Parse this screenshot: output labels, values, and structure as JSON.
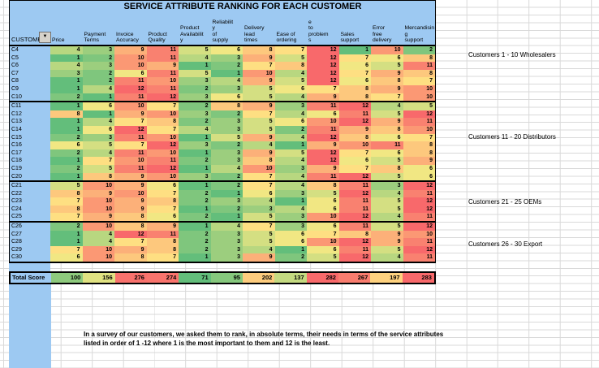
{
  "title": "SERVICE ATTRIBUTE RANKING FOR EACH CUSTOMER",
  "customer_header": "CUSTOME",
  "icons": {
    "filter_dropdown": "▼"
  },
  "columns": [
    "Price",
    "Payment\nTerms",
    "Invoice\nAccuracy",
    "Product\nQuality",
    "Product\nAvailabilit\ny",
    "Reliabilit\ny\nof\nsupply",
    "Delivery\nlead\ntimes",
    "Ease of\nordering",
    "e\nto\nproblem\ns",
    "Sales\nsupport",
    "Error\nfree\ndelivery",
    "Mercandisin\ng\nsupport"
  ],
  "groups": [
    {
      "rows": [
        {
          "id": "C4",
          "values": [
            4,
            3,
            9,
            11,
            5,
            6,
            8,
            7,
            12,
            1,
            10,
            2
          ]
        },
        {
          "id": "C5",
          "values": [
            1,
            2,
            10,
            11,
            4,
            3,
            9,
            5,
            12,
            7,
            6,
            8
          ]
        },
        {
          "id": "C6",
          "values": [
            4,
            3,
            10,
            9,
            1,
            2,
            7,
            8,
            12,
            6,
            5,
            11
          ]
        },
        {
          "id": "C7",
          "values": [
            3,
            2,
            6,
            11,
            5,
            1,
            10,
            4,
            12,
            7,
            9,
            8
          ]
        },
        {
          "id": "C8",
          "values": [
            1,
            2,
            11,
            10,
            3,
            4,
            9,
            5,
            12,
            6,
            8,
            7
          ]
        },
        {
          "id": "C9",
          "values": [
            1,
            4,
            12,
            11,
            2,
            3,
            5,
            6,
            7,
            8,
            9,
            10
          ]
        },
        {
          "id": "C10",
          "values": [
            2,
            1,
            11,
            12,
            3,
            6,
            5,
            4,
            9,
            8,
            7,
            10
          ]
        }
      ]
    },
    {
      "rows": [
        {
          "id": "C11",
          "values": [
            1,
            6,
            10,
            7,
            2,
            8,
            9,
            3,
            11,
            12,
            4,
            5
          ]
        },
        {
          "id": "C12",
          "values": [
            8,
            1,
            9,
            10,
            3,
            2,
            7,
            4,
            6,
            11,
            5,
            12
          ]
        },
        {
          "id": "C13",
          "values": [
            1,
            4,
            7,
            8,
            2,
            3,
            5,
            6,
            10,
            12,
            9,
            11
          ]
        },
        {
          "id": "C14",
          "values": [
            1,
            6,
            12,
            7,
            4,
            3,
            5,
            2,
            11,
            9,
            8,
            10
          ]
        },
        {
          "id": "C15",
          "values": [
            2,
            3,
            11,
            10,
            1,
            5,
            9,
            4,
            12,
            8,
            6,
            7
          ]
        },
        {
          "id": "C16",
          "values": [
            6,
            5,
            7,
            12,
            3,
            2,
            4,
            1,
            9,
            10,
            11,
            8
          ]
        },
        {
          "id": "C17",
          "values": [
            2,
            4,
            11,
            10,
            1,
            3,
            9,
            5,
            12,
            7,
            6,
            8
          ]
        },
        {
          "id": "C18",
          "values": [
            1,
            7,
            10,
            11,
            2,
            3,
            8,
            4,
            12,
            6,
            5,
            9
          ]
        },
        {
          "id": "C19",
          "values": [
            2,
            5,
            11,
            12,
            1,
            4,
            10,
            3,
            9,
            7,
            8,
            6
          ]
        },
        {
          "id": "C20",
          "values": [
            1,
            8,
            9,
            10,
            3,
            2,
            7,
            4,
            11,
            12,
            5,
            6
          ]
        }
      ]
    },
    {
      "rows": [
        {
          "id": "C21",
          "values": [
            5,
            10,
            9,
            6,
            1,
            2,
            7,
            4,
            8,
            11,
            3,
            12
          ]
        },
        {
          "id": "C22",
          "values": [
            8,
            9,
            10,
            7,
            2,
            1,
            6,
            3,
            5,
            12,
            4,
            11
          ]
        },
        {
          "id": "C23",
          "values": [
            7,
            10,
            9,
            8,
            2,
            3,
            4,
            1,
            6,
            11,
            5,
            12
          ]
        },
        {
          "id": "C24",
          "values": [
            8,
            10,
            9,
            7,
            1,
            2,
            3,
            4,
            6,
            11,
            5,
            12
          ]
        },
        {
          "id": "C25",
          "values": [
            7,
            9,
            8,
            6,
            2,
            1,
            5,
            3,
            10,
            12,
            4,
            11
          ]
        }
      ]
    },
    {
      "rows": [
        {
          "id": "C26",
          "values": [
            2,
            10,
            8,
            9,
            1,
            4,
            7,
            3,
            6,
            11,
            5,
            12
          ]
        },
        {
          "id": "C27",
          "values": [
            1,
            4,
            12,
            11,
            2,
            3,
            5,
            6,
            7,
            8,
            9,
            10
          ]
        },
        {
          "id": "C28",
          "values": [
            1,
            4,
            7,
            8,
            2,
            3,
            5,
            6,
            10,
            12,
            9,
            11
          ]
        },
        {
          "id": "C29",
          "values": [
            7,
            10,
            9,
            8,
            2,
            3,
            4,
            1,
            6,
            11,
            5,
            12
          ]
        },
        {
          "id": "C30",
          "values": [
            6,
            10,
            8,
            7,
            1,
            3,
            9,
            2,
            5,
            12,
            4,
            11
          ]
        }
      ]
    }
  ],
  "totals": {
    "label": "Total Score",
    "values": [
      100,
      156,
      276,
      274,
      71,
      95,
      202,
      137,
      282,
      267,
      197,
      283
    ]
  },
  "annotations": [
    "Customers 1 - 10 Wholesalers",
    "Customers 11 - 20 Distributors",
    "Customers 21 - 25 OEMs",
    "Customers 26 - 30 Export"
  ],
  "footnote": "In a survey of our customers, we asked them to rank, in absolute terms, their needs in terms of the service attributes listed in order of 1 -12 where 1 is the most important to them and 12 is the least.",
  "rank_scale": {
    "min": 1,
    "mid": 6.5,
    "max": 12
  },
  "colors": {
    "header_blue": "#9DC9F2",
    "scale_min": "#63BE7B",
    "scale_mid": "#FFEB84",
    "scale_max": "#F8696B",
    "gridline": "#D9D9D9",
    "border": "#000000",
    "filter_btn_bg": "#D6D2CA"
  }
}
